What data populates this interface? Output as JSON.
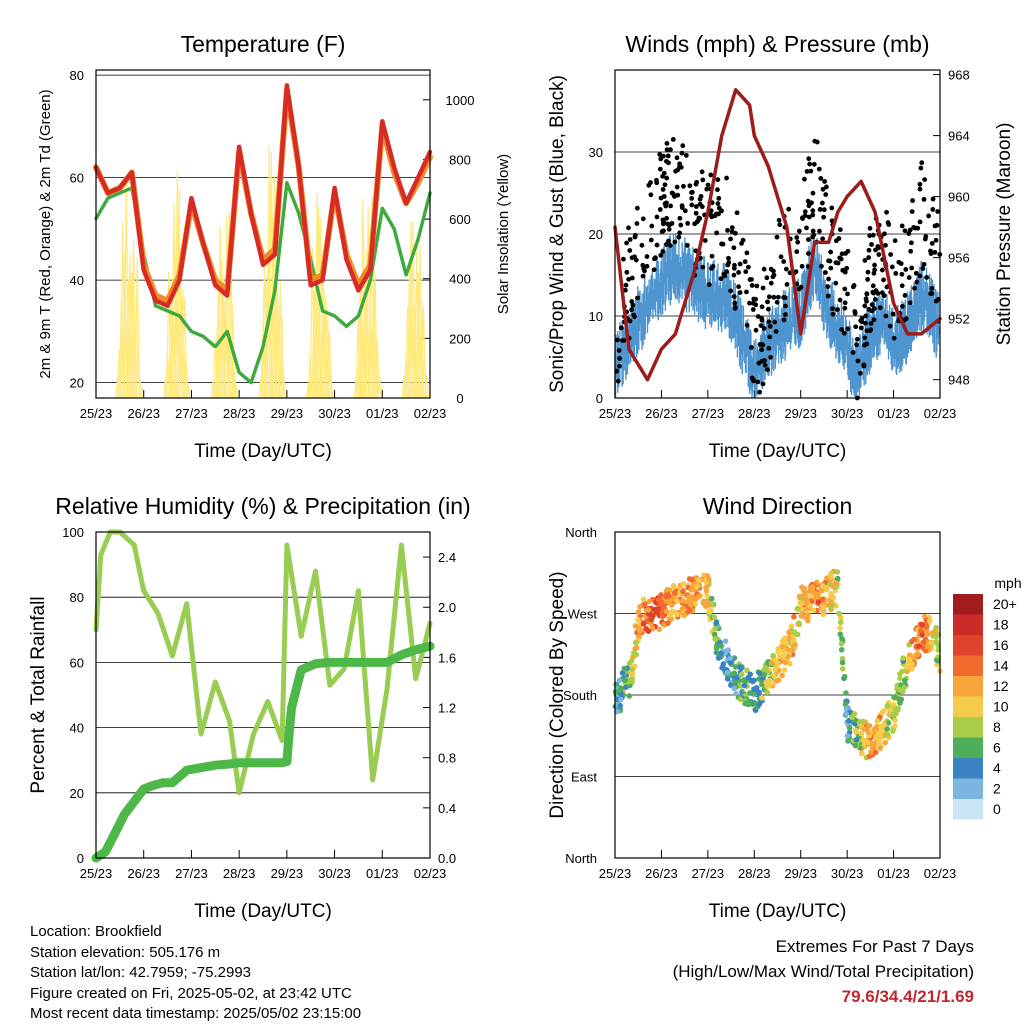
{
  "colors": {
    "red": "#d62c25",
    "orange": "#f28c28",
    "green_td": "#3cab3c",
    "yellow": "#ffe97a",
    "black": "#000000",
    "blue": "#4f95cf",
    "maroon": "#9c1b1b",
    "rh": "#98cc52",
    "rain": "#4db848",
    "extremes": "#c0282d"
  },
  "x_ticks": [
    "25/23",
    "26/23",
    "27/23",
    "28/23",
    "29/23",
    "30/23",
    "01/23",
    "02/23"
  ],
  "charts": [
    {
      "id": "temperature",
      "title": "Temperature (F)",
      "xlabel": "Time (Day/UTC)",
      "ylabel": "2m & 9m T (Red, Orange) & 2m Td (Green)",
      "ylabel_right": "Solar Insolation (Yellow)",
      "ylim": [
        17,
        81
      ],
      "yticks": [
        "20",
        "40",
        "60",
        "80"
      ],
      "ylim_right": [
        0,
        1100
      ],
      "yticks_right": [
        "0",
        "200",
        "400",
        "600",
        "800",
        "1000"
      ],
      "series": [
        {
          "color": "red",
          "x": [
            0,
            0.25,
            0.5,
            0.75,
            1,
            1.25,
            1.5,
            1.75,
            2,
            2.25,
            2.5,
            2.75,
            3,
            3.25,
            3.5,
            3.75,
            4,
            4.25,
            4.5,
            4.75,
            5,
            5.25,
            5.5,
            5.75,
            6,
            6.25,
            6.5,
            6.75,
            7
          ],
          "y": [
            62,
            57,
            58,
            61,
            42,
            36,
            35,
            40,
            56,
            47,
            39,
            37,
            66,
            53,
            43,
            45,
            78,
            62,
            39,
            40,
            58,
            44,
            38,
            42,
            71,
            62,
            55,
            60,
            65
          ]
        },
        {
          "color": "orange",
          "x": [
            0,
            0.25,
            0.5,
            0.75,
            1,
            1.25,
            1.5,
            1.75,
            2,
            2.25,
            2.5,
            2.75,
            3,
            3.25,
            3.5,
            3.75,
            4,
            4.25,
            4.5,
            4.75,
            5,
            5.25,
            5.5,
            5.75,
            6,
            6.25,
            6.5,
            6.75,
            7
          ],
          "y": [
            62,
            57,
            58,
            61,
            43,
            37,
            36,
            41,
            55,
            47,
            40,
            38,
            65,
            53,
            44,
            46,
            77,
            62,
            40,
            41,
            57,
            45,
            39,
            43,
            70,
            61,
            55,
            59,
            64
          ]
        },
        {
          "color": "green_td",
          "x": [
            0,
            0.25,
            0.5,
            0.75,
            1,
            1.25,
            1.5,
            1.75,
            2,
            2.25,
            2.5,
            2.75,
            3,
            3.25,
            3.5,
            3.75,
            4,
            4.25,
            4.5,
            4.75,
            5,
            5.25,
            5.5,
            5.75,
            6,
            6.25,
            6.5,
            6.75,
            7
          ],
          "y": [
            52,
            56,
            57,
            58,
            45,
            35,
            34,
            33,
            30,
            29,
            27,
            30,
            22,
            20,
            27,
            38,
            59,
            53,
            44,
            34,
            33,
            31,
            33,
            40,
            54,
            50,
            41,
            48,
            57
          ]
        }
      ],
      "insolation_peaks": [
        0.7,
        1.7,
        2.7,
        3.7,
        4.7,
        5.7,
        6.7
      ],
      "insolation_height": [
        900,
        800,
        750,
        900,
        1050,
        850,
        700
      ]
    },
    {
      "id": "winds",
      "title": "Winds (mph) & Pressure (mb)",
      "xlabel": "Time (Day/UTC)",
      "ylabel": "Sonic/Prop Wind & Gust (Blue, Black)",
      "ylabel_right": "Station Pressure (Maroon)",
      "ylim": [
        0,
        40
      ],
      "yticks": [
        "0",
        "10",
        "20",
        "30"
      ],
      "ylim_right": [
        946.8,
        968.3
      ],
      "yticks_right": [
        "948",
        "952",
        "956",
        "960",
        "964",
        "968"
      ],
      "pressure": {
        "x": [
          0,
          0.3,
          0.7,
          1,
          1.3,
          1.7,
          2,
          2.3,
          2.6,
          2.9,
          3,
          3.3,
          3.7,
          4,
          4.3,
          4.6,
          4.8,
          5,
          5.3,
          5.6,
          6,
          6.3,
          6.6,
          7
        ],
        "y": [
          958,
          950,
          948,
          950,
          951,
          955,
          959,
          964,
          967,
          966,
          964,
          962,
          958,
          951,
          957,
          957,
          959,
          960,
          961,
          959,
          953,
          951,
          951,
          952
        ]
      },
      "wind": {
        "x": [
          0,
          0.3,
          0.6,
          1,
          1.3,
          1.6,
          2,
          2.4,
          2.8,
          3,
          3.3,
          3.6,
          4,
          4.3,
          4.6,
          5,
          5.2,
          5.5,
          5.8,
          6,
          6.3,
          6.6,
          7
        ],
        "y": [
          3,
          7,
          10,
          14,
          16,
          14,
          12,
          12,
          6,
          3,
          6,
          8,
          10,
          16,
          10,
          6,
          2,
          7,
          9,
          6,
          8,
          12,
          8
        ]
      },
      "gust": {
        "x": [
          0,
          0.3,
          0.6,
          1,
          1.3,
          1.6,
          2,
          2.4,
          2.8,
          3,
          3.3,
          3.6,
          4,
          4.3,
          4.6,
          5,
          5.2,
          5.5,
          5.8,
          6,
          6.3,
          6.6,
          7
        ],
        "y": [
          7,
          14,
          20,
          24,
          26,
          22,
          20,
          22,
          12,
          6,
          10,
          16,
          18,
          26,
          18,
          12,
          5,
          14,
          18,
          12,
          16,
          22,
          15
        ]
      }
    },
    {
      "id": "humidity",
      "title": "Relative Humidity (%) & Precipitation (in)",
      "xlabel": "Time (Day/UTC)",
      "ylabel": "Percent & Total Rainfall",
      "ylim": [
        0,
        100
      ],
      "yticks": [
        "0",
        "20",
        "40",
        "60",
        "80",
        "100"
      ],
      "ylim_right": [
        0,
        2.6
      ],
      "yticks_right": [
        "0.0",
        "0.4",
        "0.8",
        "1.2",
        "1.6",
        "2.0",
        "2.4"
      ],
      "rh": {
        "x": [
          0,
          0.1,
          0.3,
          0.5,
          0.8,
          1.0,
          1.3,
          1.6,
          1.9,
          2.2,
          2.5,
          2.8,
          3.0,
          3.3,
          3.6,
          3.9,
          4.0,
          4.3,
          4.6,
          4.9,
          5.2,
          5.5,
          5.8,
          6.1,
          6.4,
          6.7,
          7.0
        ],
        "y": [
          70,
          93,
          100,
          100,
          96,
          82,
          75,
          62,
          78,
          38,
          54,
          42,
          20,
          38,
          48,
          36,
          96,
          68,
          88,
          53,
          58,
          82,
          24,
          52,
          96,
          55,
          72
        ]
      },
      "rain": {
        "x": [
          0,
          0.2,
          0.4,
          0.6,
          0.8,
          1.0,
          1.2,
          1.4,
          1.6,
          1.9,
          2.2,
          2.5,
          2.8,
          3.0,
          3.3,
          3.6,
          3.9,
          4.0,
          4.05,
          4.1,
          4.3,
          4.6,
          4.9,
          5.2,
          5.5,
          5.8,
          6.1,
          6.4,
          6.7,
          7.0
        ],
        "y": [
          0,
          0.05,
          0.2,
          0.35,
          0.45,
          0.55,
          0.58,
          0.6,
          0.6,
          0.7,
          0.72,
          0.74,
          0.75,
          0.76,
          0.76,
          0.76,
          0.76,
          0.77,
          1.0,
          1.2,
          1.5,
          1.55,
          1.56,
          1.56,
          1.56,
          1.56,
          1.56,
          1.62,
          1.66,
          1.69
        ]
      }
    },
    {
      "id": "direction",
      "title": "Wind Direction",
      "xlabel": "Time (Day/UTC)",
      "ylabel": "Direction (Colored By Speed)",
      "yticks": [
        "North",
        "East",
        "South",
        "West",
        "North"
      ],
      "legend_unit": "mph",
      "legend_labels": [
        "20+",
        "18",
        "16",
        "14",
        "12",
        "10",
        "8",
        "6",
        "4",
        "2",
        "0"
      ],
      "legend_colors": [
        "#a11d1d",
        "#cc2b26",
        "#e0432a",
        "#f26b2e",
        "#f7a43a",
        "#f5cc4a",
        "#a8cd46",
        "#4fae5a",
        "#3a83c3",
        "#7ab6e0",
        "#c8e4f5"
      ],
      "direction_x": [
        0,
        0.1,
        0.2,
        0.35,
        0.5,
        0.7,
        0.9,
        1.0,
        1.2,
        1.4,
        1.6,
        1.8,
        2.0,
        2.2,
        2.4,
        2.6,
        2.8,
        3.0,
        3.2,
        3.4,
        3.6,
        3.8,
        4.0,
        4.2,
        4.4,
        4.6,
        4.8,
        5.0,
        5.2,
        5.4,
        5.6,
        5.8,
        6.0,
        6.2,
        6.4,
        6.6,
        6.8,
        7.0
      ],
      "direction_y": [
        170,
        180,
        190,
        200,
        260,
        270,
        268,
        272,
        280,
        285,
        290,
        292,
        295,
        240,
        220,
        200,
        190,
        180,
        195,
        205,
        220,
        235,
        280,
        282,
        286,
        292,
        300,
        150,
        140,
        130,
        135,
        145,
        160,
        200,
        230,
        245,
        250,
        225
      ],
      "speed": [
        3,
        5,
        6,
        8,
        12,
        14,
        16,
        14,
        12,
        12,
        13,
        12,
        10,
        5,
        4,
        5,
        6,
        5,
        7,
        9,
        12,
        11,
        10,
        12,
        13,
        11,
        9,
        4,
        7,
        11,
        13,
        10,
        8,
        7,
        12,
        14,
        10,
        8
      ]
    }
  ],
  "info": {
    "location": "Location: Brookfield",
    "elevation": "Station elevation: 505.176 m",
    "latlon": "Station lat/lon: 42.7959; -75.2993",
    "created": "Figure created on Fri, 2025-05-02, at 23:42 UTC",
    "recent": "Most recent data timestamp: 2025/05/02 23:15:00"
  },
  "extremes": {
    "title": "Extremes For Past 7 Days",
    "subtitle": "(High/Low/Max Wind/Total Precipitation)",
    "value": "79.6/34.4/21/1.69"
  }
}
